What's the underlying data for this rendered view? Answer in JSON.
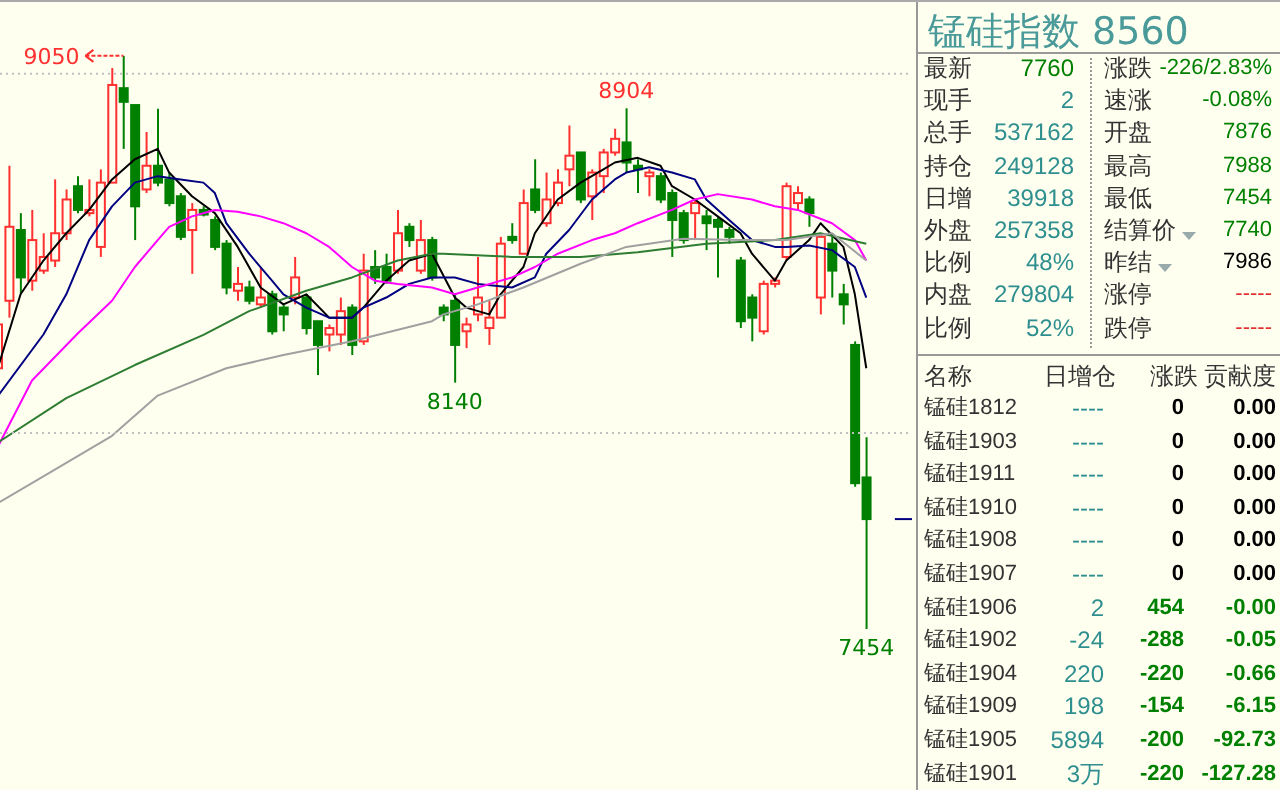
{
  "chart_data": [
    {
      "type": "candlestick",
      "categories": [
        null,
        null,
        null,
        null,
        null,
        null,
        null,
        null,
        null,
        null,
        null,
        null,
        null,
        null,
        null,
        null,
        null,
        null,
        null,
        null,
        null,
        null,
        null,
        null,
        null,
        null,
        null,
        null,
        null,
        null,
        null,
        null,
        null,
        null,
        null,
        null,
        null,
        null,
        null,
        null,
        null,
        null,
        null,
        null,
        null,
        null,
        null,
        null,
        null,
        null,
        null,
        null,
        null,
        null,
        null,
        null,
        null,
        null,
        null,
        null,
        null,
        null,
        null,
        null,
        null,
        null,
        null,
        null,
        null,
        null,
        null,
        null,
        null,
        null,
        null,
        null,
        null
      ],
      "ohlc": [
        [
          8180,
          8311,
          8161,
          8302
        ],
        [
          8368,
          8744,
          8321,
          8574
        ],
        [
          8565,
          8612,
          8386,
          8433
        ],
        [
          8424,
          8621,
          8396,
          8537
        ],
        [
          8452,
          8556,
          8443,
          8490
        ],
        [
          8480,
          8706,
          8462,
          8556
        ],
        [
          8556,
          8678,
          8537,
          8650
        ],
        [
          8687,
          8715,
          8612,
          8621
        ],
        [
          8612,
          8706,
          8603,
          8621
        ],
        [
          8518,
          8734,
          8490,
          8697
        ],
        [
          8697,
          9016,
          8697,
          8969
        ],
        [
          8960,
          9050,
          8791,
          8922
        ],
        [
          8913,
          8913,
          8537,
          8631
        ],
        [
          8678,
          8838,
          8668,
          8744
        ],
        [
          8744,
          8903,
          8687,
          8697
        ],
        [
          8706,
          8725,
          8631,
          8640
        ],
        [
          8659,
          8668,
          8537,
          8546
        ],
        [
          8565,
          8640,
          8443,
          8621
        ],
        [
          8621,
          8631,
          8603,
          8608
        ],
        [
          8593,
          8603,
          8509,
          8518
        ],
        [
          8527,
          8537,
          8386,
          8405
        ],
        [
          8396,
          8462,
          8368,
          8415
        ],
        [
          8405,
          8424,
          8358,
          8368
        ],
        [
          8358,
          8462,
          8349,
          8377
        ],
        [
          8386,
          8396,
          8274,
          8283
        ],
        [
          8349,
          8358,
          8283,
          8330
        ],
        [
          8377,
          8490,
          8358,
          8433
        ],
        [
          8377,
          8386,
          8274,
          8292
        ],
        [
          8311,
          8311,
          8161,
          8245
        ],
        [
          8274,
          8302,
          8227,
          8292
        ],
        [
          8274,
          8377,
          8245,
          8339
        ],
        [
          8349,
          8358,
          8217,
          8245
        ],
        [
          8255,
          8499,
          8245,
          8452
        ],
        [
          8462,
          8509,
          8415,
          8433
        ],
        [
          8462,
          8499,
          8415,
          8424
        ],
        [
          8452,
          8621,
          8443,
          8556
        ],
        [
          8574,
          8584,
          8518,
          8537
        ],
        [
          8452,
          8593,
          8443,
          8537
        ],
        [
          8537,
          8546,
          8424,
          8433
        ],
        [
          8349,
          8358,
          8311,
          8330
        ],
        [
          8368,
          8386,
          8140,
          8245
        ],
        [
          8283,
          8321,
          8236,
          8302
        ],
        [
          8330,
          8490,
          8311,
          8377
        ],
        [
          8292,
          8368,
          8245,
          8321
        ],
        [
          8321,
          8546,
          8321,
          8527
        ],
        [
          8546,
          8584,
          8527,
          8537
        ],
        [
          8499,
          8678,
          8499,
          8640
        ],
        [
          8678,
          8762,
          8612,
          8621
        ],
        [
          8584,
          8725,
          8574,
          8650
        ],
        [
          8640,
          8734,
          8631,
          8697
        ],
        [
          8734,
          8856,
          8687,
          8772
        ],
        [
          8781,
          8781,
          8640,
          8650
        ],
        [
          8659,
          8734,
          8593,
          8725
        ],
        [
          8715,
          8791,
          8668,
          8781
        ],
        [
          8781,
          8847,
          8772,
          8819
        ],
        [
          8809,
          8904,
          8725,
          8753
        ],
        [
          8744,
          8762,
          8668,
          8734
        ],
        [
          8715,
          8734,
          8659,
          8725
        ],
        [
          8715,
          8725,
          8640,
          8650
        ],
        [
          8668,
          8678,
          8490,
          8593
        ],
        [
          8612,
          8621,
          8527,
          8537
        ],
        [
          8612,
          8650,
          8537,
          8640
        ],
        [
          8603,
          8621,
          8509,
          8584
        ],
        [
          8593,
          8603,
          8433,
          8574
        ],
        [
          8565,
          8574,
          8527,
          8546
        ],
        [
          8480,
          8490,
          8292,
          8311
        ],
        [
          8377,
          8386,
          8255,
          8321
        ],
        [
          8283,
          8424,
          8274,
          8415
        ],
        [
          8415,
          8433,
          8405,
          8424
        ],
        [
          8490,
          8697,
          8480,
          8687
        ],
        [
          8640,
          8687,
          8621,
          8668
        ],
        [
          8650,
          8659,
          8574,
          8612
        ],
        [
          8377,
          8556,
          8330,
          8546
        ],
        [
          8527,
          8556,
          8377,
          8452
        ],
        [
          8386,
          8415,
          8302,
          8358
        ],
        [
          8245,
          8255,
          7850,
          7860
        ],
        [
          7876,
          7988,
          7454,
          7760
        ]
      ],
      "colors": [
        "#ff3030",
        "#ff3030",
        "#008000",
        "#ff3030",
        "#ff3030",
        "#ff3030",
        "#ff3030",
        "#008000",
        "#ff3030",
        "#ff3030",
        "#ff3030",
        "#008000",
        "#008000",
        "#ff3030",
        "#008000",
        "#008000",
        "#008000",
        "#ff3030",
        "#008000",
        "#008000",
        "#008000",
        "#ff3030",
        "#008000",
        "#ff3030",
        "#008000",
        "#008000",
        "#ff3030",
        "#008000",
        "#008000",
        "#ff3030",
        "#ff3030",
        "#008000",
        "#ff3030",
        "#008000",
        "#008000",
        "#ff3030",
        "#008000",
        "#ff3030",
        "#008000",
        "#008000",
        "#008000",
        "#ff3030",
        "#ff3030",
        "#ff3030",
        "#ff3030",
        "#008000",
        "#ff3030",
        "#008000",
        "#ff3030",
        "#ff3030",
        "#ff3030",
        "#008000",
        "#ff3030",
        "#ff3030",
        "#ff3030",
        "#008000",
        "#008000",
        "#ff3030",
        "#008000",
        "#008000",
        "#008000",
        "#ff3030",
        "#008000",
        "#008000",
        "#008000",
        "#008000",
        "#008000",
        "#ff3030",
        "#ff3030",
        "#ff3030",
        "#ff3030",
        "#008000",
        "#ff3030",
        "#008000",
        "#008000",
        "#008000",
        "#008000"
      ],
      "series": [
        {
          "type": "line",
          "color": "#000000",
          "values": [
            8180,
            null,
            8386,
            null,
            8480,
            null,
            8556,
            null,
            8621,
            null,
            8706,
            null,
            8762,
            null,
            8791,
            8725,
            null,
            8659,
            null,
            8612,
            null,
            8518,
            null,
            8405,
            null,
            8358,
            null,
            8386,
            null,
            8321,
            null,
            8321,
            8349,
            null,
            8424,
            null,
            8480,
            null,
            8499,
            null,
            8377,
            8349,
            null,
            8330,
            8386,
            null,
            8462,
            8556,
            null,
            8650,
            null,
            8697,
            null,
            8734,
            8753,
            null,
            8766,
            null,
            8744,
            8687,
            null,
            8650,
            null,
            8603,
            null,
            8556,
            8499,
            null,
            8424,
            8480,
            null,
            8537,
            8584,
            null,
            8518,
            8386,
            8180
          ]
        },
        {
          "type": "line",
          "color": "#000080",
          "values": [
            8102,
            null,
            null,
            null,
            8274,
            null,
            8386,
            null,
            8537,
            null,
            8631,
            null,
            8697,
            null,
            8715,
            null,
            8706,
            null,
            8697,
            8668,
            8584,
            null,
            8499,
            null,
            8424,
            8386,
            null,
            8349,
            null,
            8321,
            null,
            8321,
            8349,
            null,
            8377,
            null,
            8415,
            null,
            8433,
            null,
            8433,
            null,
            8415,
            null,
            null,
            8405,
            null,
            8433,
            8499,
            null,
            8565,
            null,
            8650,
            null,
            8706,
            8725,
            null,
            8740,
            null,
            8725,
            null,
            8706,
            8650,
            null,
            8593,
            null,
            8537,
            null,
            8518,
            8518,
            null,
            8522,
            null,
            8509,
            null,
            8462,
            8377
          ]
        },
        {
          "type": "line",
          "color": "#ff00ff",
          "values": [
            7961,
            null,
            null,
            8146,
            null,
            null,
            null,
            8277,
            null,
            null,
            8368,
            null,
            8462,
            null,
            8537,
            8574,
            null,
            8603,
            null,
            8621,
            null,
            8616,
            null,
            8603,
            null,
            8584,
            null,
            8556,
            null,
            8518,
            null,
            8462,
            null,
            8424,
            null,
            8415,
            null,
            null,
            8405,
            null,
            8386,
            null,
            8405,
            null,
            null,
            8433,
            null,
            8462,
            null,
            8499,
            null,
            null,
            8537,
            null,
            8556,
            null,
            8584,
            null,
            null,
            8621,
            null,
            8650,
            null,
            8665,
            null,
            null,
            8650,
            null,
            8631,
            null,
            8621,
            null,
            null,
            8584,
            null,
            8537,
            8480
          ]
        },
        {
          "type": "line",
          "color": "#2e7d32",
          "values": [
            7973,
            null,
            null,
            null,
            null,
            null,
            8097,
            null,
            null,
            null,
            null,
            null,
            8189,
            null,
            null,
            null,
            null,
            null,
            8273,
            null,
            null,
            null,
            8339,
            null,
            null,
            null,
            null,
            8396,
            null,
            null,
            null,
            8433,
            null,
            null,
            null,
            8480,
            null,
            null,
            8499,
            8499,
            null,
            null,
            null,
            null,
            null,
            8490,
            null,
            null,
            null,
            null,
            null,
            8490,
            null,
            null,
            null,
            null,
            8503,
            null,
            null,
            null,
            null,
            null,
            8527,
            null,
            null,
            null,
            null,
            null,
            8537,
            null,
            null,
            null,
            8556,
            null,
            null,
            null,
            8527
          ]
        },
        {
          "type": "line",
          "color": "#a0a0a0",
          "values": [
            7804,
            null,
            null,
            null,
            null,
            7898,
            null,
            null,
            null,
            null,
            7992,
            null,
            null,
            null,
            8104,
            null,
            null,
            null,
            null,
            null,
            8180,
            null,
            null,
            null,
            null,
            8217,
            null,
            null,
            null,
            null,
            null,
            8255,
            null,
            null,
            null,
            null,
            null,
            null,
            8311,
            8330,
            null,
            null,
            8358,
            null,
            null,
            null,
            8405,
            null,
            null,
            null,
            null,
            8471,
            null,
            null,
            null,
            8518,
            null,
            null,
            null,
            null,
            8541,
            null,
            null,
            null,
            null,
            8537,
            null,
            null,
            null,
            8537,
            null,
            null,
            null,
            8556,
            null,
            null,
            8480
          ]
        }
      ],
      "annotations": [
        "9050",
        "8904",
        "8140",
        "7454"
      ],
      "ref_lines": [
        {
          "axis": "y",
          "value": 9000,
          "line_style": "dotted",
          "color": "#c0c0c0"
        },
        {
          "axis": "y",
          "value": 8000,
          "line_style": "dotted",
          "color": "#c0c0c0"
        }
      ],
      "ylim": [
        7000,
        9200
      ],
      "tick_labels": false
    },
    {
      "type": "other",
      "title": "锰硅指数 8560",
      "annotations": [
        "最新",
        "7760",
        "涨跌",
        "-226/2.83%",
        "现手",
        "2",
        "速涨",
        "-0.08%",
        "总手",
        "537162",
        "开盘",
        "7876",
        "持仓",
        "249128",
        "最高",
        "7988",
        "日增",
        "39918",
        "最低",
        "7454",
        "外盘",
        "257358",
        "结算价",
        "7740",
        "比例",
        "48%",
        "昨结",
        "7986",
        "内盘",
        "279804",
        "涨停",
        "-----",
        "比例",
        "52%",
        "跌停",
        "-----",
        "名称",
        "日增仓",
        "涨跌",
        "贡献度",
        "锰硅1812",
        "----",
        "0",
        "0.00",
        "锰硅1903",
        "----",
        "0",
        "0.00",
        "锰硅1911",
        "----",
        "0",
        "0.00",
        "锰硅1910",
        "----",
        "0",
        "0.00",
        "锰硅1908",
        "----",
        "0",
        "0.00",
        "锰硅1907",
        "----",
        "0",
        "0.00",
        "锰硅1906",
        "2",
        "454",
        "-0.00",
        "锰硅1902",
        "-24",
        "-288",
        "-0.05",
        "锰硅1904",
        "220",
        "-220",
        "-0.66",
        "锰硅1909",
        "198",
        "-154",
        "-6.15",
        "锰硅1905",
        "5894",
        "-200",
        "-92.73",
        "锰硅1901",
        "3万",
        "-220",
        "-127.28"
      ]
    }
  ]
}
